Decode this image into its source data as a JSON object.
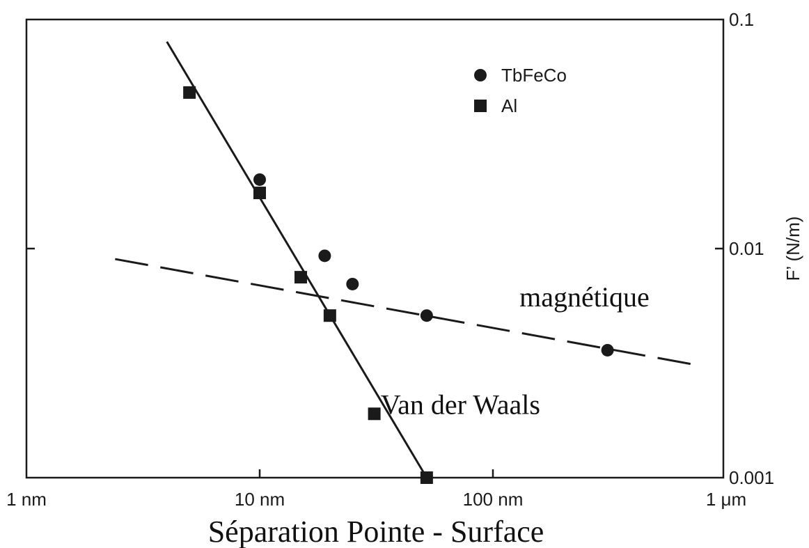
{
  "chart_data": {
    "type": "scatter",
    "x_scale": "log",
    "y_scale": "log",
    "xlim": [
      1,
      1000
    ],
    "ylim": [
      0.001,
      0.1
    ],
    "x_unit": "nm",
    "x_ticks": [
      {
        "value": 1,
        "label": "1 nm"
      },
      {
        "value": 10,
        "label": "10 nm"
      },
      {
        "value": 100,
        "label": "100 nm"
      },
      {
        "value": 1000,
        "label": "1 μm"
      }
    ],
    "y_ticks": [
      {
        "value": 0.1,
        "label": "0.1"
      },
      {
        "value": 0.01,
        "label": "0.01"
      },
      {
        "value": 0.001,
        "label": "0.001"
      }
    ],
    "xlabel": "Séparation Pointe - Surface",
    "ylabel": "F’ (N/m)",
    "y_axis_side": "right",
    "grid": false,
    "legend_position": "top-right",
    "series": [
      {
        "name": "TbFeCo",
        "marker": "circle",
        "color": "#1a1a1a",
        "points": [
          {
            "x": 10,
            "y": 0.02
          },
          {
            "x": 19,
            "y": 0.0093
          },
          {
            "x": 25,
            "y": 0.007
          },
          {
            "x": 52,
            "y": 0.0051
          },
          {
            "x": 310,
            "y": 0.0036
          }
        ]
      },
      {
        "name": "Al",
        "marker": "square",
        "color": "#1a1a1a",
        "points": [
          {
            "x": 5,
            "y": 0.048
          },
          {
            "x": 10,
            "y": 0.0175
          },
          {
            "x": 15,
            "y": 0.0075
          },
          {
            "x": 20,
            "y": 0.0051
          },
          {
            "x": 31,
            "y": 0.0019
          },
          {
            "x": 52,
            "y": 0.001
          }
        ]
      }
    ],
    "fit_lines": [
      {
        "style": "solid",
        "color": "#1a1a1a",
        "from": {
          "x": 4,
          "y": 0.08
        },
        "to": {
          "x": 52,
          "y": 0.001
        }
      },
      {
        "style": "dashed",
        "color": "#1a1a1a",
        "from": {
          "x": 2.4,
          "y": 0.009
        },
        "to": {
          "x": 750,
          "y": 0.0031
        }
      }
    ],
    "annotations": [
      {
        "text": "magnétique",
        "x": 130,
        "y": 0.0056
      },
      {
        "text": "Van der Waals",
        "x": 33,
        "y": 0.0019
      }
    ]
  }
}
